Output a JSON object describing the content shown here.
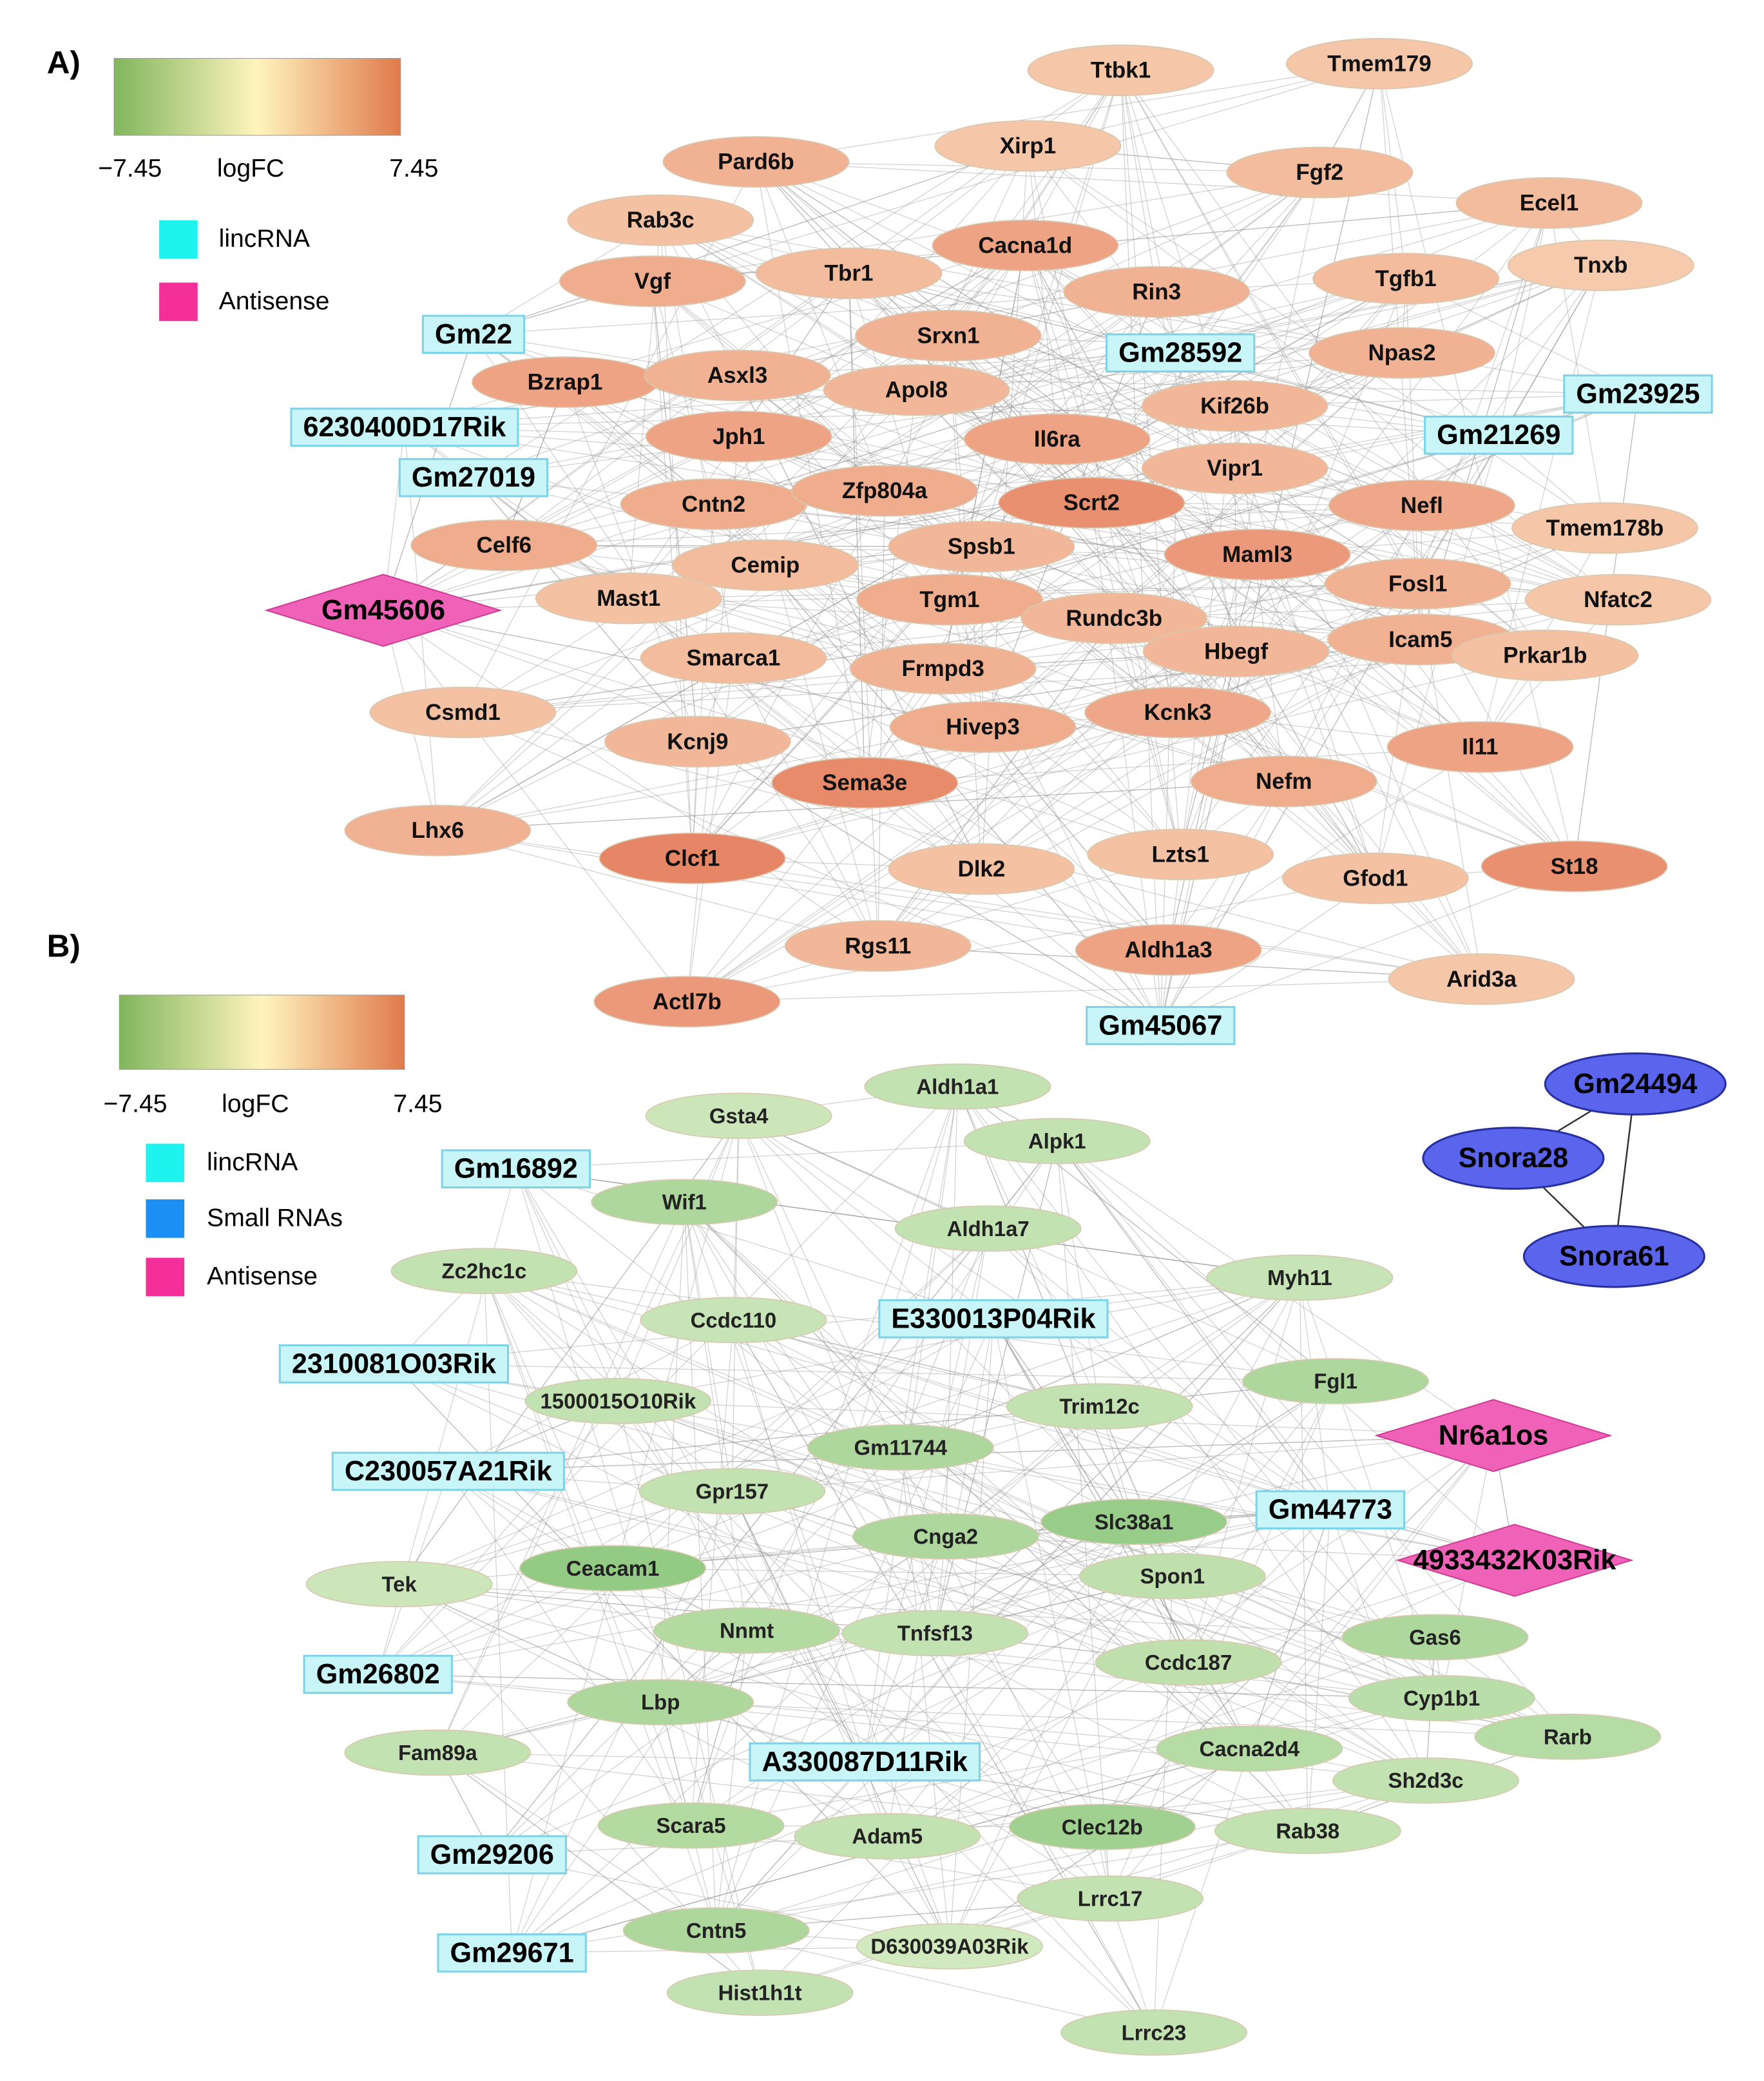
{
  "panels": [
    {
      "label": "A)",
      "legend": {
        "min": "−7.45",
        "title": "logFC",
        "max": "7.45",
        "items": [
          "lincRNA",
          "Antisense"
        ]
      },
      "nodes": [
        "Ttbk1",
        "Tmem179",
        "Pard6b",
        "Xirp1",
        "Fgf2",
        "Ecel1",
        "Rab3c",
        "Cacna1d",
        "Tnxb",
        "Vgf",
        "Tbr1",
        "Rin3",
        "Tgfb1",
        "Gm22",
        "Srxn1",
        "Gm28592",
        "Npas2",
        "Bzrap1",
        "Asxl3",
        "Apol8",
        "Gm23925",
        "Kif26b",
        "6230400D17Rik",
        "Jph1",
        "Il6ra",
        "Gm21269",
        "Gm27019",
        "Vipr1",
        "Cntn2",
        "Zfp804a",
        "Scrt2",
        "Nefl",
        "Tmem178b",
        "Celf6",
        "Spsb1",
        "Cemip",
        "Maml3",
        "Fosl1",
        "Nfatc2",
        "Gm45606",
        "Mast1",
        "Tgm1",
        "Rundc3b",
        "Icam5",
        "Hbegf",
        "Prkar1b",
        "Smarca1",
        "Frmpd3",
        "Csmd1",
        "Kcnk3",
        "Kcnj9",
        "Hivep3",
        "Il11",
        "Sema3e",
        "Nefm",
        "Lhx6",
        "Clcf1",
        "Lzts1",
        "Dlk2",
        "Gfod1",
        "St18",
        "Rgs11",
        "Aldh1a3",
        "Arid3a",
        "Actl7b",
        "Gm45067"
      ]
    },
    {
      "label": "B)",
      "legend": {
        "min": "−7.45",
        "title": "logFC",
        "max": "7.45",
        "items": [
          "lincRNA",
          "Small RNAs",
          "Antisense"
        ]
      },
      "nodes": [
        "Aldh1a1",
        "Gsta4",
        "Alpk1",
        "Gm24494",
        "Gm16892",
        "Snora28",
        "Wif1",
        "Aldh1a7",
        "Snora61",
        "Zc2hc1c",
        "Myh11",
        "Ccdc110",
        "E330013P04Rik",
        "2310081O03Rik",
        "1500015O10Rik",
        "Fgl1",
        "Trim12c",
        "Nr6a1os",
        "Gm11744",
        "C230057A21Rik",
        "Gpr157",
        "Gm44773",
        "Slc38a1",
        "Cnga2",
        "4933432K03Rik",
        "Ceacam1",
        "Spon1",
        "Tek",
        "Nnmt",
        "Tnfsf13",
        "Gas6",
        "Gm26802",
        "Ccdc187",
        "Lbp",
        "Cyp1b1",
        "Rarb",
        "Fam89a",
        "A330087D11Rik",
        "Cacna2d4",
        "Sh2d3c",
        "Scara5",
        "Adam5",
        "Clec12b",
        "Rab38",
        "Gm29206",
        "Lrrc17",
        "Cntn5",
        "D630039A03Rik",
        "Gm29671",
        "Hist1h1t",
        "Lrrc23"
      ]
    }
  ]
}
